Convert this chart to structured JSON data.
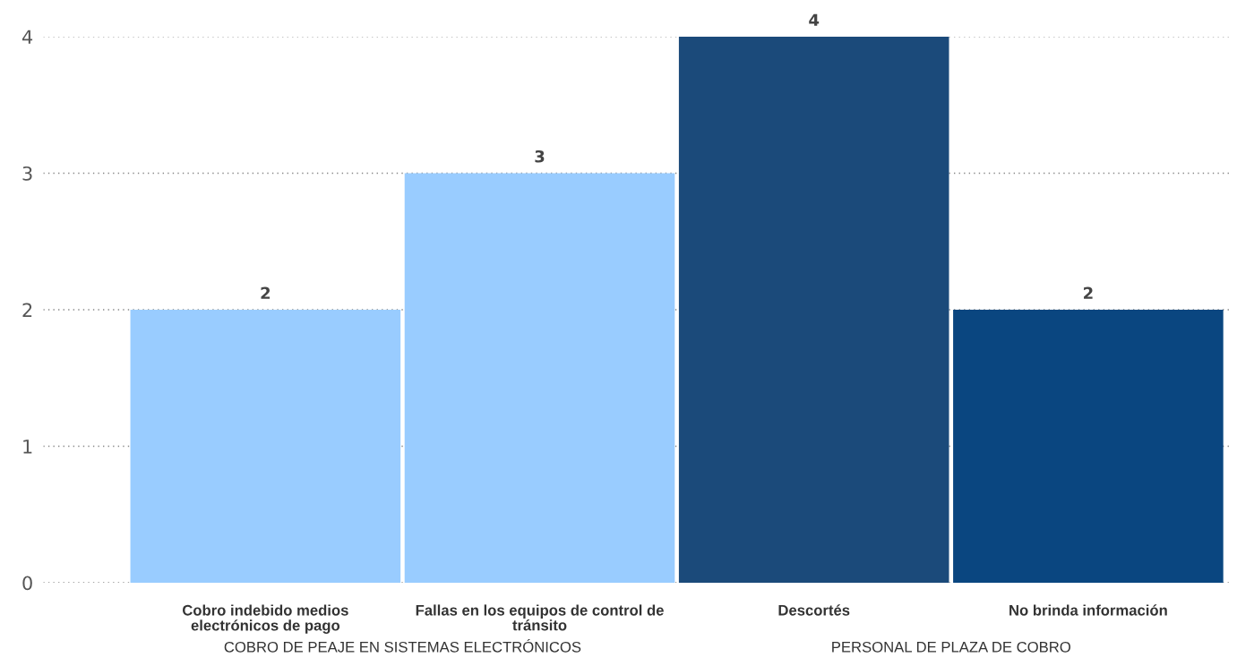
{
  "chart_data": {
    "type": "bar",
    "categories": [
      "Cobro indebido medios electrónicos de pago",
      "Fallas en los equipos de control de tránsito",
      "Descortés",
      "No brinda información"
    ],
    "values": [
      2,
      3,
      4,
      2
    ],
    "colors": [
      "#99ccff",
      "#99ccff",
      "#1b4a7a",
      "#0a4680"
    ],
    "ylim": [
      0,
      4
    ],
    "yticks": [
      0,
      1,
      2,
      3,
      4
    ],
    "grid": "y",
    "data_labels": true,
    "annotations": [
      "COBRO DE PEAJE EN SISTEMAS ELECTRÓNICOS",
      "PERSONAL DE PLAZA DE COBRO"
    ]
  }
}
